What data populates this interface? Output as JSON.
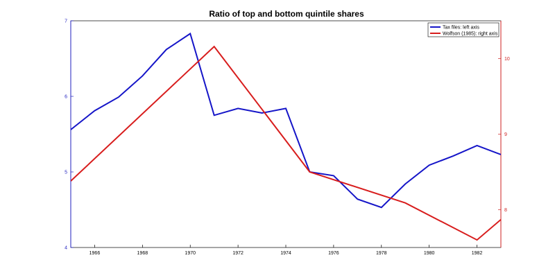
{
  "chart_data": {
    "type": "line",
    "title": "Ratio of top and bottom quintile shares",
    "xlabel": "",
    "ylabel": "",
    "y2label": "",
    "x_range": [
      1965,
      1983
    ],
    "x_ticks": [
      "1966",
      "1968",
      "1970",
      "1972",
      "1974",
      "1976",
      "1978",
      "1980",
      "1982"
    ],
    "left_axis": {
      "range": [
        4,
        7
      ],
      "ticks": [
        "4",
        "5",
        "6",
        "7"
      ],
      "color": "#1f1fbf"
    },
    "right_axis": {
      "range": [
        7.5,
        10.5
      ],
      "ticks": [
        "8",
        "9",
        "10"
      ],
      "color": "#cc1f1f"
    },
    "grid": false,
    "legend_position": "top-right",
    "series": [
      {
        "name": "Tax files: left axis",
        "axis": "left",
        "color": "#1515c8",
        "x": [
          1965,
          1966,
          1967,
          1968,
          1969,
          1970,
          1971,
          1972,
          1973,
          1974,
          1975,
          1976,
          1977,
          1978,
          1979,
          1980,
          1981,
          1982,
          1983
        ],
        "values": [
          5.56,
          5.81,
          5.99,
          6.27,
          6.62,
          6.83,
          5.75,
          5.84,
          5.78,
          5.84,
          5.0,
          4.95,
          4.64,
          4.53,
          4.84,
          5.09,
          5.21,
          5.35,
          5.23
        ]
      },
      {
        "name": "Wolfson (1985): right axis",
        "axis": "right",
        "color": "#d81d1d",
        "x": [
          1965,
          1971,
          1975,
          1979,
          1982,
          1983
        ],
        "values": [
          8.38,
          10.16,
          8.5,
          8.09,
          7.6,
          7.87
        ]
      }
    ]
  }
}
